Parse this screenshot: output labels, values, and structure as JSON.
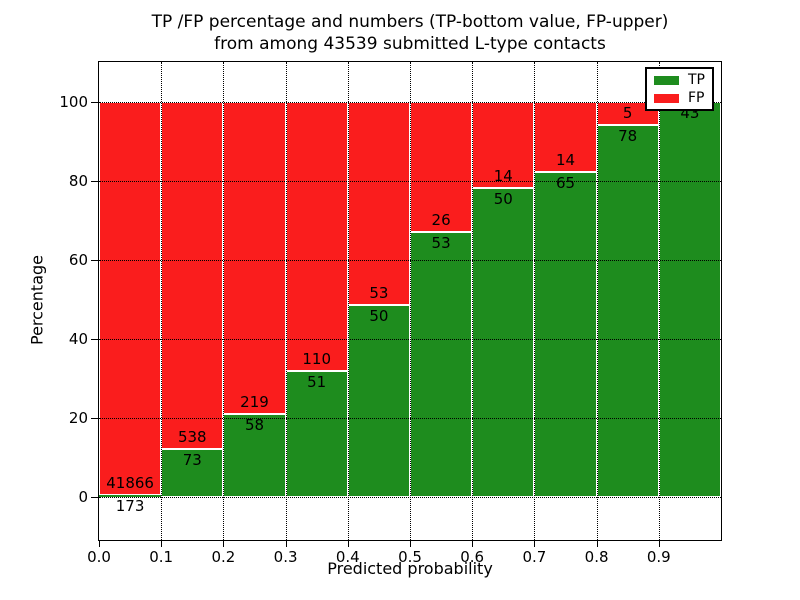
{
  "title": {
    "line1": "TP /FP percentage and numbers (TP-bottom value, FP-upper)",
    "line2": "from among 43539 submitted L-type contacts"
  },
  "chart_data": {
    "type": "bar",
    "stacked": true,
    "normalized_to_percent": true,
    "title": "TP /FP percentage and numbers (TP-bottom value, FP-upper) from among 43539 submitted L-type contacts",
    "xlabel": "Predicted probability",
    "ylabel": "Percentage",
    "x_bin_start": [
      0.0,
      0.1,
      0.2,
      0.3,
      0.4,
      0.5,
      0.6,
      0.7,
      0.8,
      0.9
    ],
    "bin_width": 0.1,
    "series": [
      {
        "name": "TP",
        "color": "#1e8c1e",
        "counts": [
          173,
          73,
          58,
          51,
          50,
          53,
          50,
          65,
          78,
          43
        ]
      },
      {
        "name": "FP",
        "color": "#fa1d1d",
        "counts": [
          41866,
          538,
          219,
          110,
          53,
          26,
          14,
          14,
          5,
          0
        ]
      }
    ],
    "percent_tp": [
      0.41,
      11.95,
      20.94,
      31.68,
      48.54,
      67.09,
      78.13,
      82.28,
      93.98,
      100.0
    ],
    "xticks": [
      "0.0",
      "0.1",
      "0.2",
      "0.3",
      "0.4",
      "0.5",
      "0.6",
      "0.7",
      "0.8",
      "0.9"
    ],
    "yticks": [
      0,
      20,
      40,
      60,
      80,
      100
    ],
    "xlim": [
      0.0,
      1.0
    ],
    "ylim": [
      -11,
      110
    ],
    "grid": true,
    "grid_style": "dotted",
    "legend": {
      "position": "upper right",
      "entries": [
        "TP",
        "FP"
      ]
    },
    "bar_edge_color": "#ffffff",
    "label_convention": "TP count below segment boundary, FP count above"
  }
}
